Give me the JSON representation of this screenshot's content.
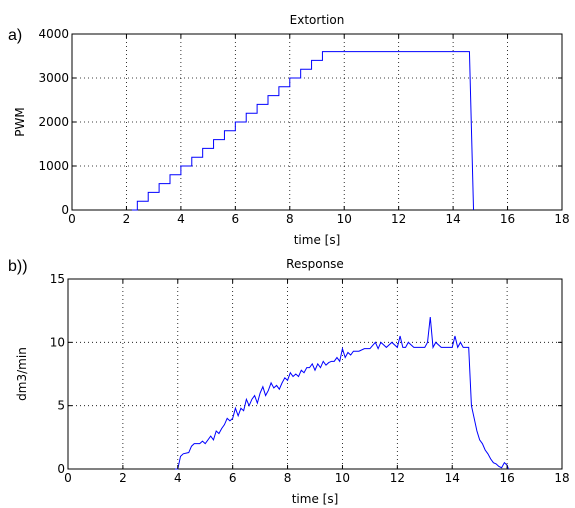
{
  "chart_data": [
    {
      "type": "line",
      "panel_label": "a)",
      "title": "Extortion",
      "xlabel": "time [s]",
      "ylabel": "PWM",
      "xlim": [
        0,
        18
      ],
      "ylim": [
        0,
        4000
      ],
      "xticks": [
        0,
        2,
        4,
        6,
        8,
        10,
        12,
        14,
        16,
        18
      ],
      "yticks": [
        0,
        1000,
        2000,
        3000,
        4000
      ],
      "grid": true,
      "color": "#0000ff",
      "series": [
        {
          "x": [
            2.2,
            2.4,
            2.4,
            2.8,
            2.8,
            3.2,
            3.2,
            3.6,
            3.6,
            4.0,
            4.0,
            4.4,
            4.4,
            4.8,
            4.8,
            5.2,
            5.2,
            5.6,
            5.6,
            6.0,
            6.0,
            6.4,
            6.4,
            6.8,
            6.8,
            7.2,
            7.2,
            7.6,
            7.6,
            8.0,
            8.0,
            8.4,
            8.4,
            8.8,
            8.8,
            9.2,
            9.2,
            9.6,
            9.6,
            10.0,
            10.0,
            10.4,
            10.4,
            10.8,
            10.8,
            11.2,
            11.2,
            14.6,
            14.75
          ],
          "values": [
            0,
            0,
            200,
            200,
            400,
            400,
            600,
            600,
            800,
            800,
            1000,
            1000,
            1200,
            1200,
            1400,
            1400,
            1600,
            1600,
            1800,
            1800,
            2000,
            2000,
            2200,
            2200,
            2400,
            2400,
            2600,
            2600,
            2800,
            2800,
            3000,
            3000,
            3200,
            3200,
            3400,
            3400,
            3600,
            3600,
            3600,
            3600,
            3600,
            3600,
            3600,
            3600,
            3600,
            3600,
            3600,
            3600,
            0
          ]
        }
      ]
    },
    {
      "type": "line",
      "panel_label": "b))",
      "title": "Response",
      "xlabel": "time [s]",
      "ylabel": "dm3/min",
      "xlim": [
        0,
        18
      ],
      "ylim": [
        0,
        15
      ],
      "xticks": [
        0,
        2,
        4,
        6,
        8,
        10,
        12,
        14,
        16,
        18
      ],
      "yticks": [
        0,
        5,
        10,
        15
      ],
      "grid": true,
      "color": "#0000ff",
      "series": [
        {
          "x": [
            3.9,
            4.0,
            4.05,
            4.1,
            4.2,
            4.4,
            4.5,
            4.6,
            4.8,
            4.9,
            5.0,
            5.2,
            5.3,
            5.4,
            5.5,
            5.6,
            5.7,
            5.8,
            5.9,
            6.0,
            6.1,
            6.2,
            6.3,
            6.4,
            6.5,
            6.6,
            6.7,
            6.8,
            6.9,
            7.0,
            7.1,
            7.2,
            7.3,
            7.4,
            7.5,
            7.6,
            7.7,
            7.8,
            7.9,
            8.0,
            8.1,
            8.2,
            8.3,
            8.4,
            8.5,
            8.6,
            8.7,
            8.8,
            8.9,
            9.0,
            9.1,
            9.2,
            9.3,
            9.4,
            9.5,
            9.6,
            9.7,
            9.8,
            9.9,
            10.0,
            10.1,
            10.2,
            10.3,
            10.4,
            10.6,
            10.8,
            11.0,
            11.2,
            11.3,
            11.4,
            11.6,
            11.8,
            12.0,
            12.1,
            12.2,
            12.3,
            12.4,
            12.6,
            12.8,
            13.0,
            13.1,
            13.2,
            13.3,
            13.4,
            13.6,
            13.8,
            14.0,
            14.1,
            14.2,
            14.3,
            14.4,
            14.6,
            14.7,
            14.8,
            14.9,
            15.0,
            15.1,
            15.2,
            15.3,
            15.4,
            15.5,
            15.6,
            15.7,
            15.8,
            15.9,
            16.0,
            16.05
          ],
          "values": [
            0,
            0,
            0.5,
            1.0,
            1.2,
            1.3,
            1.8,
            2.0,
            2.0,
            2.2,
            2.0,
            2.6,
            2.3,
            3.0,
            2.8,
            3.2,
            3.5,
            4.0,
            3.8,
            4.0,
            4.8,
            4.2,
            4.8,
            4.6,
            5.5,
            5.0,
            5.5,
            5.8,
            5.2,
            6.0,
            6.5,
            5.8,
            6.2,
            6.8,
            6.4,
            6.6,
            6.3,
            6.8,
            7.2,
            7.0,
            7.6,
            7.3,
            7.5,
            7.3,
            7.8,
            7.6,
            8.0,
            8.0,
            8.3,
            7.8,
            8.3,
            8.0,
            8.5,
            8.2,
            8.4,
            8.5,
            8.5,
            8.8,
            8.5,
            9.5,
            8.8,
            9.2,
            9.0,
            9.3,
            9.3,
            9.5,
            9.5,
            10.0,
            9.5,
            10.0,
            9.6,
            10.0,
            9.6,
            10.5,
            9.6,
            9.6,
            10.0,
            9.6,
            9.6,
            9.6,
            10.0,
            12.0,
            9.6,
            10.0,
            9.6,
            9.6,
            9.6,
            10.5,
            9.6,
            10.0,
            9.6,
            9.6,
            5.0,
            4.0,
            3.0,
            2.3,
            2.0,
            1.5,
            1.2,
            0.8,
            0.5,
            0.4,
            0.2,
            0.1,
            0.5,
            0.3,
            0
          ]
        }
      ]
    }
  ]
}
